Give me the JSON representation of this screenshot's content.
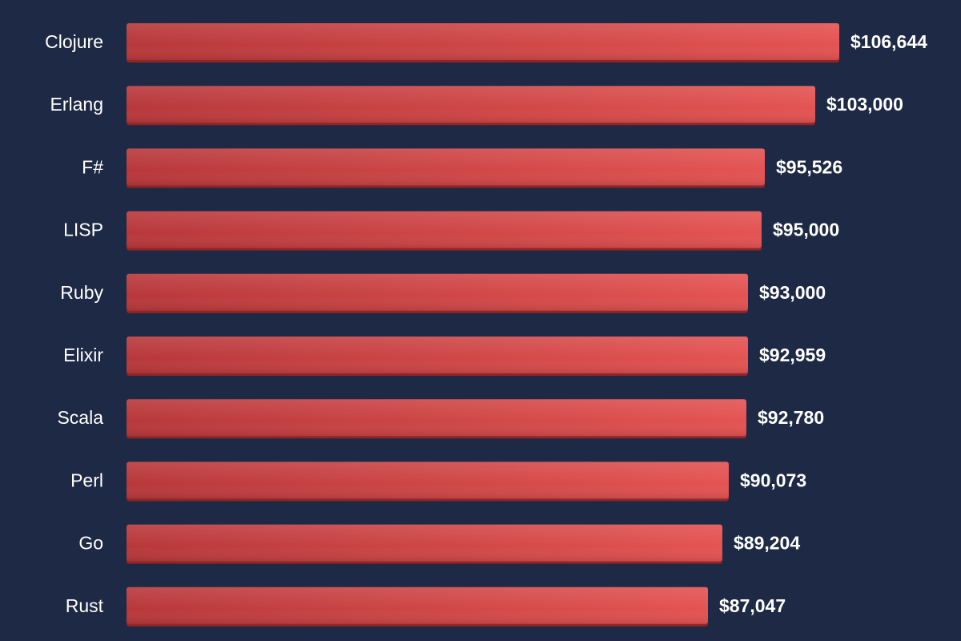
{
  "colors": {
    "background": "#1e2a45",
    "bar_dark": "#b8383a",
    "bar_light": "#e45353",
    "bar_edge": "#8e2628",
    "text": "#ffffff"
  },
  "chart_data": {
    "type": "bar",
    "orientation": "horizontal",
    "title": "",
    "xlabel": "",
    "ylabel": "",
    "grid": false,
    "categories": [
      "Clojure",
      "Erlang",
      "F#",
      "LISP",
      "Ruby",
      "Elixir",
      "Scala",
      "Perl",
      "Go",
      "Rust"
    ],
    "values": [
      106644,
      103000,
      95526,
      95000,
      93000,
      92959,
      92780,
      90073,
      89204,
      87047
    ],
    "value_labels": [
      "$106,644",
      "$103,000",
      "$95,526",
      "$95,000",
      "$93,000",
      "$92,959",
      "$92,780",
      "$90,073",
      "$89,204",
      "$87,047"
    ],
    "xlim": [
      0,
      106644
    ]
  }
}
